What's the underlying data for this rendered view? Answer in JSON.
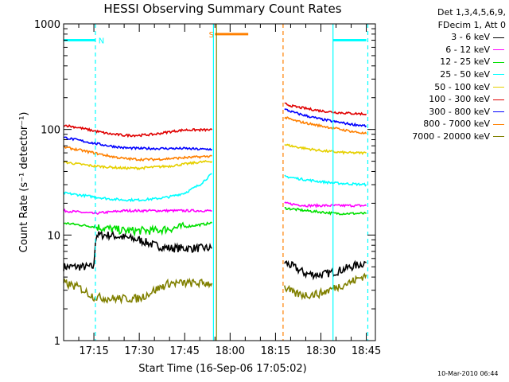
{
  "chart_data": {
    "type": "line",
    "title": "HESSI Observing Summary Count Rates",
    "xlabel": "Start Time (16-Sep-06 17:05:02)",
    "ylabel": "Count Rate (s⁻¹ detector⁻¹)",
    "y_scale": "log",
    "ylim": [
      1,
      1000
    ],
    "y_ticks": [
      {
        "value": 1,
        "label": "1"
      },
      {
        "value": 10,
        "label": "10"
      },
      {
        "value": 100,
        "label": "100"
      },
      {
        "value": 1000,
        "label": "1000"
      }
    ],
    "x_ticks": [
      "17:15",
      "17:30",
      "17:45",
      "18:00",
      "18:15",
      "18:30",
      "18:45"
    ],
    "x_tick_minutes": [
      10,
      25,
      40,
      55,
      70,
      85,
      100
    ],
    "xlim_minutes": [
      0,
      103
    ],
    "legend": {
      "position": "right",
      "header": [
        "Det 1,3,4,5,6,9,",
        "FDecim 1, Att 0"
      ],
      "items": [
        {
          "label": "3 - 6 keV",
          "color": "#000000"
        },
        {
          "label": "6 - 12 keV",
          "color": "#ff00ff"
        },
        {
          "label": "12 - 25 keV",
          "color": "#00e000"
        },
        {
          "label": "25 - 50 keV",
          "color": "#00ffff"
        },
        {
          "label": "50 - 100 keV",
          "color": "#e6d000"
        },
        {
          "label": "100 - 300 keV",
          "color": "#e00000"
        },
        {
          "label": "300 - 800 keV",
          "color": "#0000ff"
        },
        {
          "label": "800 - 7000 keV",
          "color": "#ff8000"
        },
        {
          "label": "7000 - 20000 keV",
          "color": "#808000"
        }
      ]
    },
    "series": [
      {
        "name": "3 - 6 keV",
        "color": "#000000",
        "segments": [
          {
            "x": [
              0,
              10,
              10.5,
              11,
              15,
              20,
              25,
              30,
              35,
              40,
              45,
              49
            ],
            "y": [
              5,
              5,
              9,
              10,
              10,
              9.5,
              9,
              8,
              7.5,
              7.5,
              7.5,
              7.5
            ]
          },
          {
            "x": [
              73,
              76,
              80,
              85,
              90,
              95,
              100
            ],
            "y": [
              5.5,
              5,
              4.3,
              4.2,
              4.5,
              5,
              5.5
            ]
          }
        ]
      },
      {
        "name": "6 - 12 keV",
        "color": "#ff00ff",
        "segments": [
          {
            "x": [
              0,
              5,
              10,
              15,
              20,
              25,
              30,
              35,
              40,
              45,
              49
            ],
            "y": [
              17,
              16.5,
              16,
              16.5,
              17,
              17,
              17,
              17,
              17,
              17,
              17
            ]
          },
          {
            "x": [
              73,
              80,
              85,
              90,
              95,
              100
            ],
            "y": [
              20,
              19,
              19,
              19,
              19,
              19
            ]
          }
        ]
      },
      {
        "name": "12 - 25 keV",
        "color": "#00e000",
        "segments": [
          {
            "x": [
              0,
              5,
              10,
              15,
              20,
              25,
              30,
              35,
              40,
              45,
              49
            ],
            "y": [
              13,
              12.5,
              12,
              11.5,
              11,
              11,
              11,
              11.5,
              12,
              12.5,
              13
            ]
          },
          {
            "x": [
              73,
              80,
              85,
              90,
              95,
              100
            ],
            "y": [
              18,
              17,
              16.5,
              16,
              16,
              16
            ]
          }
        ]
      },
      {
        "name": "25 - 50 keV",
        "color": "#00ffff",
        "segments": [
          {
            "x": [
              0,
              5,
              10,
              15,
              20,
              25,
              30,
              35,
              40,
              45,
              49
            ],
            "y": [
              25,
              24,
              23,
              22,
              21.5,
              21.5,
              22,
              23,
              25,
              30,
              38
            ]
          },
          {
            "x": [
              73,
              78,
              85,
              90,
              95,
              100
            ],
            "y": [
              36,
              34,
              32,
              31,
              30.5,
              30
            ]
          }
        ]
      },
      {
        "name": "50 - 100 keV",
        "color": "#e6d000",
        "segments": [
          {
            "x": [
              0,
              5,
              10,
              15,
              20,
              25,
              30,
              35,
              40,
              45,
              49
            ],
            "y": [
              49,
              47,
              45,
              44,
              43,
              43,
              44,
              45,
              47,
              49,
              50
            ]
          },
          {
            "x": [
              73,
              76,
              80,
              85,
              90,
              95,
              100
            ],
            "y": [
              72,
              69,
              66,
              63,
              61,
              60,
              60
            ]
          }
        ]
      },
      {
        "name": "100 - 300 keV",
        "color": "#e00000",
        "segments": [
          {
            "x": [
              0,
              5,
              10,
              15,
              20,
              25,
              30,
              35,
              40,
              45,
              49
            ],
            "y": [
              110,
              104,
              97,
              91,
              88,
              88,
              90,
              95,
              99,
              99,
              99
            ]
          },
          {
            "x": [
              73,
              76,
              80,
              85,
              90,
              95,
              100
            ],
            "y": [
              175,
              165,
              158,
              150,
              145,
              142,
              140
            ]
          }
        ]
      },
      {
        "name": "300 - 800 keV",
        "color": "#0000ff",
        "segments": [
          {
            "x": [
              0,
              5,
              10,
              15,
              20,
              25,
              30,
              35,
              40,
              45,
              49
            ],
            "y": [
              84,
              79,
              74,
              70,
              67,
              66,
              66,
              66,
              66,
              65,
              65
            ]
          },
          {
            "x": [
              73,
              76,
              80,
              85,
              90,
              95,
              100
            ],
            "y": [
              155,
              145,
              135,
              125,
              118,
              112,
              108
            ]
          }
        ]
      },
      {
        "name": "800 - 7000 keV",
        "color": "#ff8000",
        "segments": [
          {
            "x": [
              0,
              5,
              10,
              15,
              20,
              25,
              30,
              35,
              40,
              45,
              49
            ],
            "y": [
              68,
              64,
              60,
              56,
              53,
              52,
              52,
              53,
              54,
              55,
              56
            ]
          },
          {
            "x": [
              73,
              76,
              80,
              85,
              90,
              95,
              100
            ],
            "y": [
              130,
              122,
              115,
              108,
              102,
              96,
              91
            ]
          }
        ]
      },
      {
        "name": "7000 - 20000 keV",
        "color": "#808000",
        "segments": [
          {
            "x": [
              0,
              5,
              10,
              15,
              20,
              25,
              30,
              35,
              40,
              45,
              49
            ],
            "y": [
              3.5,
              3.2,
              2.6,
              2.5,
              2.5,
              2.5,
              3,
              3.5,
              3.5,
              3.5,
              3.5
            ]
          },
          {
            "x": [
              73,
              76,
              80,
              85,
              90,
              95,
              100
            ],
            "y": [
              3.2,
              2.8,
              2.7,
              2.8,
              3.2,
              3.6,
              4.2
            ]
          }
        ]
      }
    ],
    "annotations": {
      "night_bars": [
        {
          "x": [
            0,
            10.5
          ],
          "y": 700,
          "color": "#00ffff",
          "label": "N",
          "label_x": 11.5
        },
        {
          "x": [
            89,
            100
          ],
          "y": 700,
          "color": "#00ffff",
          "label": "",
          "label_x": 89
        }
      ],
      "saa_bars": [
        {
          "x": [
            50,
            61
          ],
          "y": 800,
          "color": "#ff8000",
          "label": "S",
          "label_x": 48
        }
      ],
      "vlines": [
        {
          "x": 10.5,
          "color": "#00ffff",
          "style": "dashed"
        },
        {
          "x": 49.5,
          "color": "#00ffff",
          "style": "solid"
        },
        {
          "x": 50.5,
          "color": "#808000",
          "style": "solid"
        },
        {
          "x": 72.5,
          "color": "#ff8000",
          "style": "dashed"
        },
        {
          "x": 89,
          "color": "#00ffff",
          "style": "solid"
        },
        {
          "x": 100.5,
          "color": "#00ffff",
          "style": "dashed"
        }
      ]
    },
    "grid": false
  },
  "footer": {
    "date_stamp": "10-Mar-2010 06:44"
  }
}
